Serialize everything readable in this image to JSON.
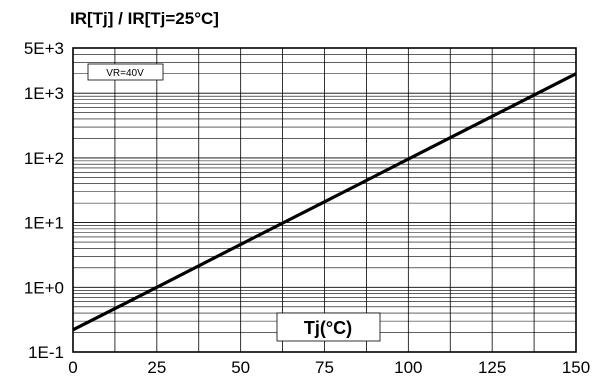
{
  "chart_data": {
    "type": "line",
    "title": "IR[Tj] / IR[Tj=25°C]",
    "xlabel": "Tj(°C)",
    "ylabel": "",
    "y_scale": "log",
    "grid": true,
    "xlim": [
      0,
      150
    ],
    "ylim": [
      0.1,
      5000
    ],
    "x_ticks": [
      0,
      25,
      50,
      75,
      100,
      125,
      150
    ],
    "x_tick_labels": [
      "0",
      "25",
      "50",
      "75",
      "100",
      "125",
      "150"
    ],
    "y_ticks": [
      0.1,
      1,
      10,
      100,
      1000,
      5000
    ],
    "y_tick_labels": [
      "1E-1",
      "1E+0",
      "1E+1",
      "1E+2",
      "1E+3",
      "5E+3"
    ],
    "annotations": [
      "VR=40V"
    ],
    "series": [
      {
        "x": [
          0,
          25,
          50,
          75,
          100,
          125,
          150
        ],
        "values": [
          0.22,
          1.0,
          4.6,
          21,
          96,
          440,
          2000
        ]
      }
    ]
  }
}
